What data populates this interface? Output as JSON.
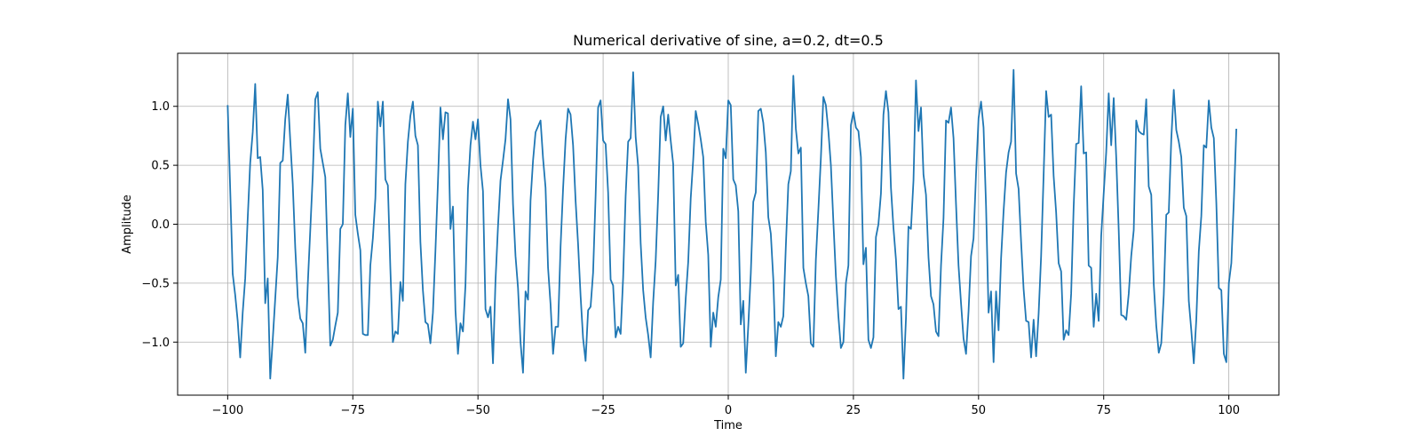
{
  "chart_data": {
    "type": "line",
    "title": "Numerical derivative of sine, a=0.2, dt=0.5",
    "xlabel": "Time",
    "ylabel": "Amplitude",
    "xlim": [
      -110,
      110
    ],
    "ylim": [
      -1.45,
      1.45
    ],
    "grid": true,
    "x_ticks": [
      -100,
      -75,
      -50,
      -25,
      0,
      25,
      50,
      75,
      100
    ],
    "x_tick_labels": [
      "−100",
      "−75",
      "−50",
      "−25",
      "0",
      "25",
      "50",
      "75",
      "100"
    ],
    "y_ticks": [
      -1.0,
      -0.5,
      0.0,
      0.5,
      1.0
    ],
    "y_tick_labels": [
      "−1.0",
      "−0.5",
      "0.0",
      "0.5",
      "1.0"
    ],
    "color": "#1f77b4",
    "series": [
      {
        "x_start": -100,
        "x_step": 0.5,
        "values": [
          1.01,
          0.3,
          -0.42,
          -0.6,
          -0.82,
          -1.13,
          -0.75,
          -0.46,
          0.05,
          0.52,
          0.78,
          1.19,
          0.56,
          0.57,
          0.29,
          -0.67,
          -0.46,
          -1.31,
          -0.98,
          -0.63,
          -0.28,
          0.52,
          0.54,
          0.89,
          1.1,
          0.71,
          0.34,
          -0.2,
          -0.62,
          -0.8,
          -0.84,
          -1.09,
          -0.51,
          -0.05,
          0.42,
          1.06,
          1.12,
          0.64,
          0.52,
          0.4,
          -0.32,
          -1.03,
          -0.98,
          -0.86,
          -0.75,
          -0.04,
          0.0,
          0.84,
          1.11,
          0.74,
          0.98,
          0.08,
          -0.08,
          -0.22,
          -0.93,
          -0.94,
          -0.94,
          -0.35,
          -0.12,
          0.22,
          1.04,
          0.83,
          1.04,
          0.38,
          0.33,
          -0.38,
          -1.0,
          -0.91,
          -0.93,
          -0.49,
          -0.65,
          0.34,
          0.7,
          0.92,
          1.04,
          0.75,
          0.67,
          -0.15,
          -0.56,
          -0.83,
          -0.85,
          -1.01,
          -0.75,
          -0.23,
          0.35,
          0.99,
          0.72,
          0.95,
          0.94,
          -0.04,
          0.15,
          -0.73,
          -1.1,
          -0.84,
          -0.91,
          -0.52,
          0.3,
          0.67,
          0.87,
          0.72,
          0.89,
          0.5,
          0.28,
          -0.72,
          -0.79,
          -0.7,
          -1.18,
          -0.48,
          -0.02,
          0.37,
          0.54,
          0.72,
          1.06,
          0.89,
          0.17,
          -0.27,
          -0.54,
          -1.0,
          -1.26,
          -0.57,
          -0.64,
          0.2,
          0.54,
          0.78,
          0.83,
          0.88,
          0.56,
          0.31,
          -0.37,
          -0.68,
          -1.1,
          -0.87,
          -0.87,
          -0.19,
          0.3,
          0.72,
          0.98,
          0.93,
          0.67,
          0.2,
          -0.17,
          -0.61,
          -0.97,
          -1.16,
          -0.73,
          -0.7,
          -0.41,
          0.24,
          0.99,
          1.05,
          0.71,
          0.68,
          0.27,
          -0.47,
          -0.52,
          -0.96,
          -0.87,
          -0.93,
          -0.45,
          0.24,
          0.7,
          0.73,
          1.29,
          0.74,
          0.49,
          -0.16,
          -0.56,
          -0.79,
          -0.94,
          -1.13,
          -0.66,
          -0.31,
          0.25,
          0.91,
          1.0,
          0.71,
          0.93,
          0.71,
          0.51,
          -0.52,
          -0.43,
          -1.04,
          -1.01,
          -0.63,
          -0.32,
          0.22,
          0.55,
          0.96,
          0.85,
          0.72,
          0.57,
          0.02,
          -0.26,
          -1.04,
          -0.75,
          -0.87,
          -0.62,
          -0.47,
          0.64,
          0.56,
          1.05,
          1.01,
          0.38,
          0.33,
          0.11,
          -0.85,
          -0.65,
          -1.26,
          -0.86,
          -0.42,
          0.19,
          0.27,
          0.96,
          0.98,
          0.86,
          0.61,
          0.06,
          -0.08,
          -0.47,
          -1.12,
          -0.83,
          -0.87,
          -0.78,
          -0.19,
          0.34,
          0.45,
          1.26,
          0.81,
          0.6,
          0.65,
          -0.37,
          -0.5,
          -0.61,
          -1.01,
          -1.04,
          -0.3,
          0.12,
          0.56,
          1.08,
          1.01,
          0.79,
          0.5,
          0.02,
          -0.44,
          -0.78,
          -1.05,
          -1.0,
          -0.5,
          -0.35,
          0.84,
          0.95,
          0.82,
          0.79,
          0.57,
          -0.34,
          -0.2,
          -0.98,
          -1.05,
          -0.96,
          -0.11,
          0.0,
          0.26,
          0.93,
          1.13,
          0.95,
          0.31,
          -0.03,
          -0.3,
          -0.72,
          -0.7,
          -1.31,
          -0.8,
          -0.02,
          -0.04,
          0.37,
          1.22,
          0.79,
          0.99,
          0.42,
          0.25,
          -0.28,
          -0.61,
          -0.68,
          -0.91,
          -0.95,
          -0.35,
          0.05,
          0.88,
          0.86,
          0.99,
          0.73,
          0.17,
          -0.35,
          -0.67,
          -0.97,
          -1.1,
          -0.74,
          -0.27,
          -0.12,
          0.43,
          0.9,
          1.04,
          0.82,
          0.15,
          -0.75,
          -0.57,
          -1.17,
          -0.57,
          -0.9,
          -0.29,
          0.11,
          0.44,
          0.61,
          0.7,
          1.31,
          0.43,
          0.3,
          -0.15,
          -0.55,
          -0.82,
          -0.83,
          -1.13,
          -0.81,
          -1.12,
          -0.76,
          -0.27,
          0.42,
          1.13,
          0.91,
          0.93,
          0.41,
          0.1,
          -0.33,
          -0.4,
          -0.98,
          -0.9,
          -0.94,
          -0.59,
          0.15,
          0.68,
          0.69,
          1.17,
          0.6,
          0.61,
          -0.35,
          -0.37,
          -0.87,
          -0.59,
          -0.82,
          -0.1,
          0.26,
          0.61,
          1.11,
          0.67,
          1.07,
          0.57,
          -0.05,
          -0.77,
          -0.78,
          -0.81,
          -0.59,
          -0.27,
          -0.05,
          0.88,
          0.79,
          0.77,
          0.76,
          1.06,
          0.32,
          0.25,
          -0.51,
          -0.86,
          -1.09,
          -1.01,
          -0.6,
          0.08,
          0.1,
          0.72,
          1.14,
          0.8,
          0.7,
          0.57,
          0.14,
          0.07,
          -0.65,
          -0.9,
          -1.18,
          -0.81,
          -0.23,
          0.07,
          0.67,
          0.65,
          1.05,
          0.82,
          0.73,
          0.18,
          -0.54,
          -0.56,
          -1.1,
          -1.17,
          -0.5,
          -0.33,
          0.2,
          0.81
        ]
      }
    ]
  }
}
